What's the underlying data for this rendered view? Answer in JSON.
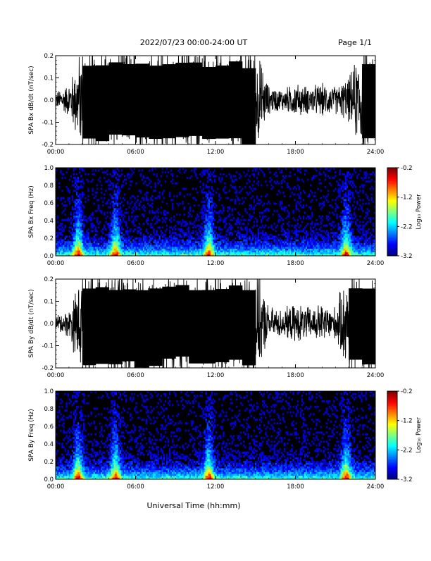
{
  "header": {
    "title": "2022/07/23  00:00-24:00 UT",
    "page": "Page 1/1"
  },
  "xaxis": {
    "label": "Universal Time (hh:mm)",
    "ticks": [
      "00:00",
      "06:00",
      "12:00",
      "18:00",
      "24:00"
    ],
    "range_hours": [
      0,
      24
    ]
  },
  "colorbar": {
    "label": "Log₁₀ Power",
    "ticks": [
      "-0.2",
      "-1.2",
      "-2.2",
      "-3.2"
    ],
    "range": [
      -3.2,
      -0.2
    ]
  },
  "chart_data": [
    {
      "type": "line",
      "ylabel": "SPA Bx dB/dt (nT/sec)",
      "ylim": [
        -0.2,
        0.2
      ],
      "yticks": [
        "0.2",
        "0.1",
        "0.0",
        "-0.1",
        "-0.2"
      ],
      "x": [
        0,
        1,
        2,
        3,
        4,
        5,
        6,
        7,
        8,
        9,
        10,
        11,
        12,
        13,
        14,
        15,
        16,
        17,
        18,
        19,
        20,
        21,
        22,
        23,
        24
      ],
      "envelope": [
        0.03,
        0.06,
        0.2,
        0.2,
        0.2,
        0.2,
        0.2,
        0.2,
        0.2,
        0.2,
        0.2,
        0.2,
        0.2,
        0.2,
        0.2,
        0.2,
        0.05,
        0.04,
        0.06,
        0.05,
        0.06,
        0.05,
        0.08,
        0.2,
        0.2
      ]
    },
    {
      "type": "heatmap",
      "ylabel": "SPA Bx Freq (Hz)",
      "ylim": [
        0.0,
        1.0
      ],
      "yticks": [
        "1.0",
        "0.8",
        "0.6",
        "0.4",
        "0.2",
        "0.0"
      ],
      "bursts_hours": [
        1.7,
        4.5,
        11.5,
        21.8
      ]
    },
    {
      "type": "line",
      "ylabel": "SPA By dB/dt (nT/sec)",
      "ylim": [
        -0.2,
        0.2
      ],
      "yticks": [
        "0.2",
        "0.1",
        "0.0",
        "-0.1",
        "-0.2"
      ],
      "x": [
        0,
        1,
        2,
        3,
        4,
        5,
        6,
        7,
        8,
        9,
        10,
        11,
        12,
        13,
        14,
        15,
        16,
        17,
        18,
        19,
        20,
        21,
        22,
        23,
        24
      ],
      "envelope": [
        0.03,
        0.05,
        0.2,
        0.2,
        0.2,
        0.2,
        0.2,
        0.2,
        0.2,
        0.2,
        0.2,
        0.2,
        0.2,
        0.2,
        0.2,
        0.2,
        0.06,
        0.05,
        0.07,
        0.06,
        0.07,
        0.06,
        0.2,
        0.2,
        0.2
      ]
    },
    {
      "type": "heatmap",
      "ylabel": "SPA By Freq (Hz)",
      "ylim": [
        0.0,
        1.0
      ],
      "yticks": [
        "1.0",
        "0.8",
        "0.6",
        "0.4",
        "0.2",
        "0.0"
      ],
      "bursts_hours": [
        1.7,
        4.5,
        11.5,
        21.8
      ]
    }
  ]
}
